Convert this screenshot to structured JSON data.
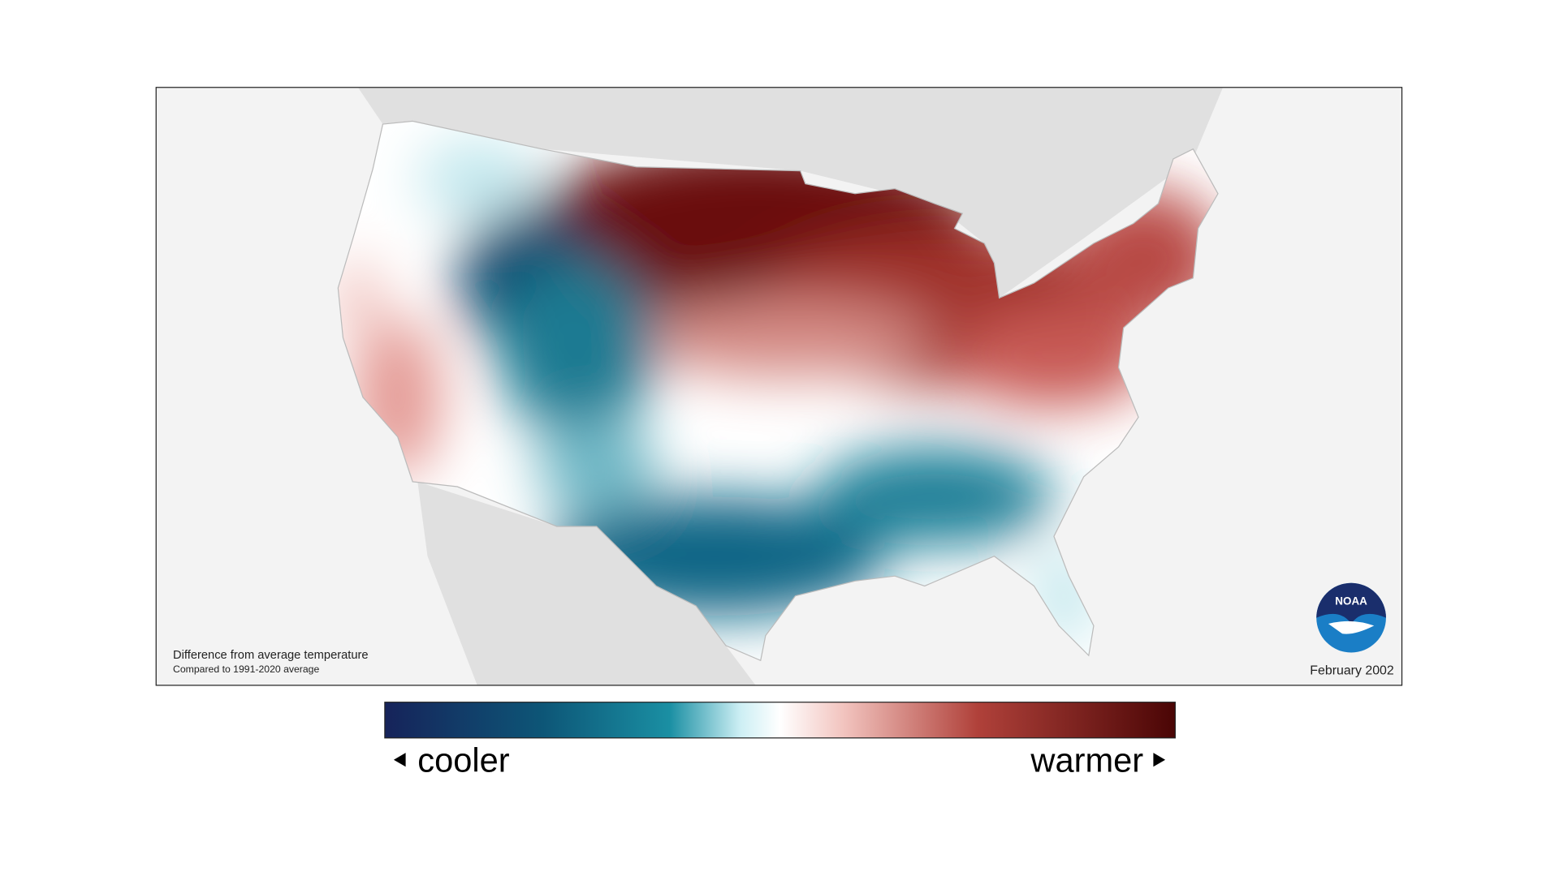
{
  "map": {
    "caption_title": "Difference from average temperature",
    "caption_subtitle": "Compared to 1991-2020 average",
    "date": "February 2002",
    "logo": "NOAA"
  },
  "legend": {
    "low_label": "cooler",
    "high_label": "warmer"
  }
}
